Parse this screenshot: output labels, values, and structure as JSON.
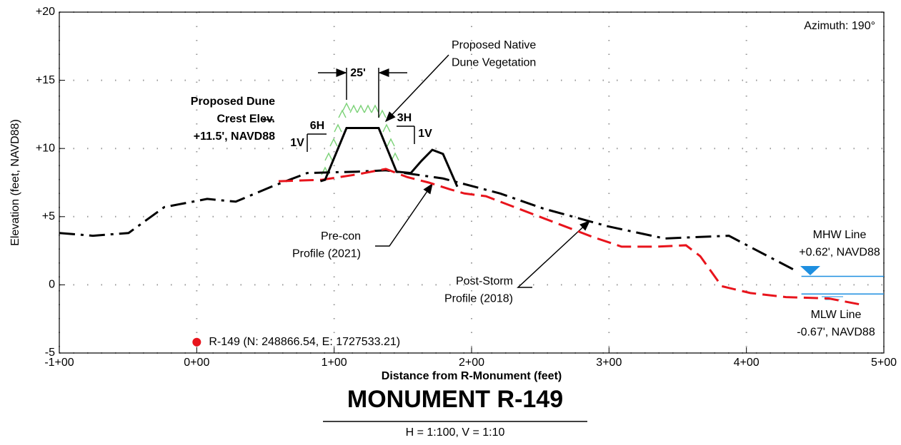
{
  "chart_data": {
    "type": "line",
    "title": "MONUMENT R-149",
    "subtitle": "H = 1:100, V = 1:10",
    "x_label": "Distance from R-Monument (feet)",
    "y_label": "Elevation (feet, NAVD88)",
    "xlim": [
      -100,
      500
    ],
    "ylim": [
      -5,
      20
    ],
    "xticks": [
      {
        "value": -100,
        "label": "-1+00"
      },
      {
        "value": 0,
        "label": "0+00"
      },
      {
        "value": 100,
        "label": "1+00"
      },
      {
        "value": 200,
        "label": "2+00"
      },
      {
        "value": 300,
        "label": "3+00"
      },
      {
        "value": 400,
        "label": "4+00"
      },
      {
        "value": 500,
        "label": "5+00"
      }
    ],
    "yticks": [
      {
        "value": 20,
        "label": "+20"
      },
      {
        "value": 15,
        "label": "+15"
      },
      {
        "value": 10,
        "label": "+10"
      },
      {
        "value": 5,
        "label": "+5"
      },
      0,
      -5
    ],
    "grid": true,
    "series": [
      {
        "color": "#000000",
        "dash": "dashdot",
        "x": [
          -100,
          -75.6,
          -49.6,
          -23.6,
          7.6,
          28.4,
          54.4,
          80.4,
          116.8,
          137.6,
          179.2,
          220.8,
          252,
          298.8,
          340.4,
          387.2,
          408,
          436.6
        ],
        "values": [
          3.8,
          3.6,
          3.8,
          5.7,
          6.3,
          6.1,
          7.2,
          8.2,
          8.3,
          8.4,
          7.8,
          6.7,
          5.6,
          4.3,
          3.4,
          3.6,
          2.5,
          1.0
        ]
      },
      {
        "color": "#e8141c",
        "dash": "dashed",
        "x": [
          59.6,
          90.8,
          116.8,
          137.6,
          153.2,
          168.8,
          184.4,
          194.8,
          210.4,
          231.2,
          262.4,
          288.4,
          309.2,
          335.2,
          356,
          366.4,
          382,
          402.8,
          428.8,
          460,
          486
        ],
        "values": [
          7.6,
          7.7,
          8.1,
          8.5,
          7.9,
          7.5,
          7.0,
          6.7,
          6.5,
          5.7,
          4.5,
          3.5,
          2.8,
          2.8,
          2.9,
          2.1,
          -0.1,
          -0.6,
          -0.9,
          -1.0,
          -1.5
        ]
      },
      {
        "color": "#000000",
        "dash": "solid",
        "x": [
          90,
          93.4,
          109,
          132.4,
          145.4,
          155.8,
          163.6,
          171.4,
          179.2,
          189.6
        ],
        "values": [
          7.6,
          7.7,
          11.5,
          11.5,
          8.3,
          8.2,
          9.1,
          9.9,
          9.6,
          7.2
        ]
      },
      {
        "color": "#1e8fe0",
        "dash": "solid",
        "x": [
          440,
          500
        ],
        "values": [
          0.62,
          0.62
        ]
      },
      {
        "color": "#1e8fe0",
        "dash": "solid",
        "x": [
          440,
          500
        ],
        "values": [
          -0.67,
          -0.67
        ]
      }
    ],
    "monument": {
      "x": 0,
      "y": -4.2,
      "color": "#e8141c",
      "label": "R-149 (N: 248866.54, E: 1727533.21)"
    },
    "annotations": [
      [
        "Azimuth: 190°"
      ],
      [
        "Proposed Native",
        "Dune Vegetation"
      ],
      [
        "Proposed Dune",
        "Crest Elev.",
        "+11.5', NAVD88"
      ],
      [
        "Pre-con",
        "Profile (2021)"
      ],
      [
        "Post-Storm",
        "Profile (2018)"
      ],
      [
        "MHW Line",
        "+0.62', NAVD88"
      ],
      [
        "MLW Line",
        "-0.67', NAVD88"
      ],
      [
        "25'"
      ],
      [
        "6H"
      ],
      [
        "1V"
      ],
      [
        "3H"
      ],
      [
        "1V"
      ]
    ]
  }
}
